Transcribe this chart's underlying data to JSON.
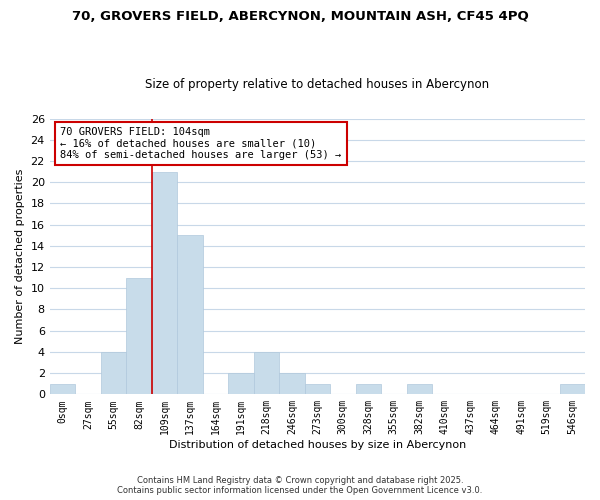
{
  "title": "70, GROVERS FIELD, ABERCYNON, MOUNTAIN ASH, CF45 4PQ",
  "subtitle": "Size of property relative to detached houses in Abercynon",
  "xlabel": "Distribution of detached houses by size in Abercynon",
  "ylabel": "Number of detached properties",
  "bar_color": "#c8dcea",
  "bar_edge_color": "#b0c8dc",
  "bin_labels": [
    "0sqm",
    "27sqm",
    "55sqm",
    "82sqm",
    "109sqm",
    "137sqm",
    "164sqm",
    "191sqm",
    "218sqm",
    "246sqm",
    "273sqm",
    "300sqm",
    "328sqm",
    "355sqm",
    "382sqm",
    "410sqm",
    "437sqm",
    "464sqm",
    "491sqm",
    "519sqm",
    "546sqm"
  ],
  "bar_heights": [
    1,
    0,
    4,
    11,
    21,
    15,
    0,
    2,
    4,
    2,
    1,
    0,
    1,
    0,
    1,
    0,
    0,
    0,
    0,
    0,
    1
  ],
  "ylim": [
    0,
    26
  ],
  "yticks": [
    0,
    2,
    4,
    6,
    8,
    10,
    12,
    14,
    16,
    18,
    20,
    22,
    24,
    26
  ],
  "vline_x": 4,
  "vline_color": "#cc0000",
  "annotation_title": "70 GROVERS FIELD: 104sqm",
  "annotation_line1": "← 16% of detached houses are smaller (10)",
  "annotation_line2": "84% of semi-detached houses are larger (53) →",
  "annotation_box_color": "#ffffff",
  "annotation_box_edge": "#cc0000",
  "footer_line1": "Contains HM Land Registry data © Crown copyright and database right 2025.",
  "footer_line2": "Contains public sector information licensed under the Open Government Licence v3.0.",
  "background_color": "#ffffff",
  "grid_color": "#c8d8e8"
}
